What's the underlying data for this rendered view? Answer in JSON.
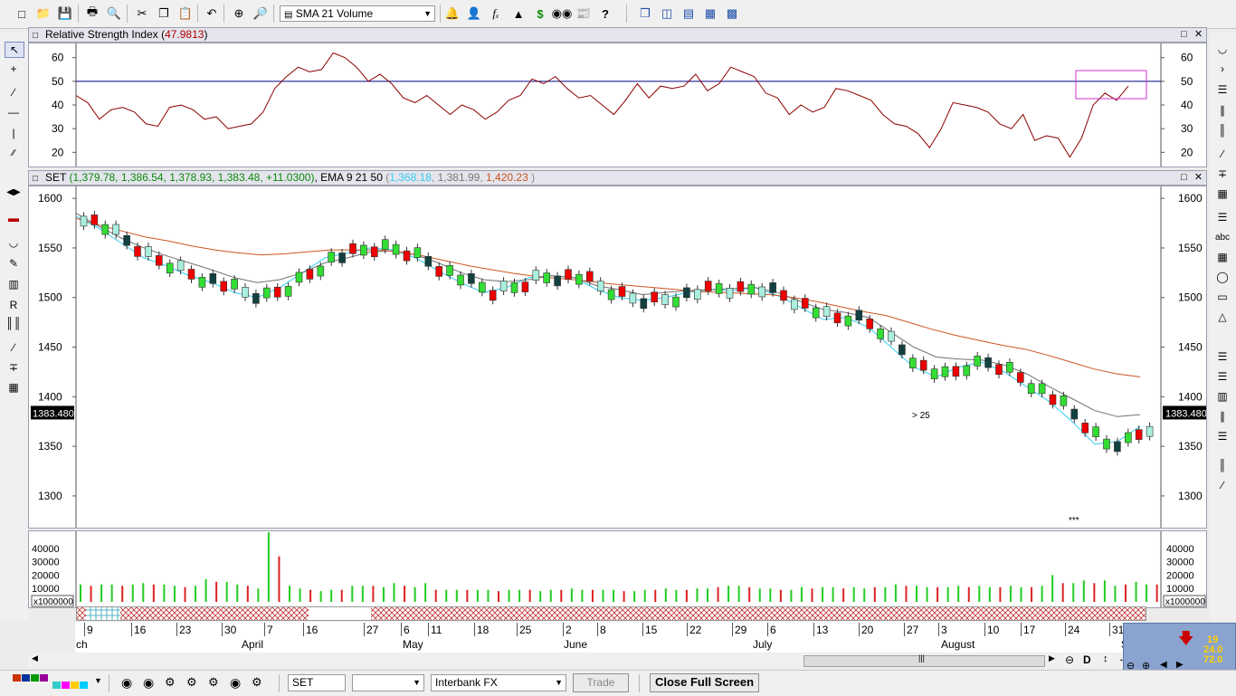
{
  "toolbar": {
    "indicator_combo": "SMA 21 Volume",
    "icons": [
      "new-file-icon",
      "open-folder-icon",
      "save-icon",
      "print-icon",
      "print-preview-icon",
      "cut-icon",
      "copy-icon",
      "paste-icon",
      "undo-icon",
      "crosshair-icon",
      "zoom-icon",
      "bell-icon",
      "person-icon",
      "function-icon",
      "tree-icon",
      "dollar-icon",
      "binoculars-icon",
      "news-icon",
      "help-icon",
      "window-cascade-icon",
      "tile-vertical-icon",
      "tile-horizontal-icon",
      "grid-icon",
      "snapshot-icon"
    ]
  },
  "rsi_panel": {
    "title_prefix": "Relative Strength Index (",
    "title_value": "47.9813",
    "title_suffix": ")",
    "ticks": [
      "60",
      "50",
      "40",
      "30",
      "20"
    ],
    "right_ticks": [
      "60",
      "50",
      "40",
      "30",
      "20"
    ]
  },
  "price_panel": {
    "symbol": "SET",
    "ohlc": "1,379.78, 1,386.54, 1,378.93, 1,383.48, +11.0300",
    "ema_label": "EMA 9 21 50",
    "ema9": "1,368.18",
    "ema21": "1,381.99",
    "ema50": "1,420.23",
    "ticks": [
      "1600",
      "1550",
      "1500",
      "1450",
      "1400",
      "1350",
      "1300"
    ],
    "last_price": "1383.480",
    "annotations": {
      "gt25": "> 25",
      "stars": "***"
    },
    "colors": {
      "ema9": "#33ccee",
      "ema21": "#707070",
      "ema50": "#cc5522",
      "up": "#33dd33",
      "down": "#ee0000",
      "hollow": "#aaeedd"
    }
  },
  "volume_panel": {
    "ticks": [
      "40000",
      "30000",
      "20000",
      "10000"
    ],
    "multiplier": "x1000000"
  },
  "time_axis": {
    "days": [
      "9",
      "16",
      "23",
      "30",
      "7",
      "16",
      "27",
      "6",
      "11",
      "18",
      "25",
      "2",
      "8",
      "15",
      "22",
      "29",
      "6",
      "13",
      "20",
      "27",
      "3",
      "10",
      "17",
      "24",
      "31"
    ],
    "months": [
      "ch",
      "April",
      "May",
      "June",
      "July",
      "August",
      "Septem"
    ]
  },
  "minipanel": {
    "l1": "19",
    "l2": "24.0",
    "l3": "72.0"
  },
  "scrollbar": {
    "d_label": "D"
  },
  "bottom": {
    "symbol_input": "SET",
    "provider_combo": "Interbank FX",
    "trade_button": "Trade",
    "close_button": "Close Full Screen",
    "colors": [
      "#cc3300",
      "#003399",
      "#009900",
      "#990099",
      "#33cccc",
      "#ff00ff",
      "#ffcc00",
      "#00ccff"
    ]
  },
  "chart_data": [
    {
      "type": "line",
      "title": "Relative Strength Index (47.9813)",
      "ylim": [
        14,
        66
      ],
      "reference_line": 50,
      "series": [
        {
          "name": "Relative Strength Index",
          "values": [
            44,
            41,
            34,
            38,
            39,
            37,
            32,
            31,
            39,
            40,
            38,
            34,
            35,
            30,
            31,
            32,
            37,
            47,
            52,
            56,
            54,
            55,
            62,
            60,
            56,
            50,
            53,
            49,
            43,
            41,
            44,
            40,
            36,
            40,
            38,
            34,
            37,
            42,
            44,
            51,
            49,
            52,
            47,
            43,
            44,
            40,
            36,
            42,
            49,
            43,
            48,
            47,
            48,
            53,
            46,
            49,
            56,
            54,
            52,
            45,
            43,
            36,
            40,
            37,
            39,
            47,
            46,
            44,
            42,
            36,
            32,
            31,
            28,
            22,
            30,
            41,
            40,
            39,
            37,
            32,
            30,
            36,
            25,
            27,
            26,
            18,
            26,
            40,
            45,
            42,
            48
          ]
        }
      ]
    },
    {
      "type": "line",
      "title": "SET (1,379.78, 1,386.54, 1,378.93, 1,383.48, +11.0300), EMA 9 21 50",
      "ylim": [
        1268,
        1612
      ],
      "series": [
        {
          "name": "EMA 9",
          "values": [
            1582,
            1570,
            1555,
            1540,
            1532,
            1522,
            1515,
            1505,
            1500,
            1510,
            1525,
            1540,
            1545,
            1550,
            1548,
            1540,
            1527,
            1515,
            1505,
            1510,
            1520,
            1522,
            1520,
            1508,
            1500,
            1497,
            1500,
            1505,
            1508,
            1507,
            1510,
            1502,
            1490,
            1478,
            1480,
            1470,
            1450,
            1430,
            1420,
            1430,
            1435,
            1425,
            1410,
            1395,
            1375,
            1352,
            1355,
            1370
          ]
        },
        {
          "name": "EMA 21",
          "values": [
            1585,
            1572,
            1560,
            1550,
            1542,
            1535,
            1528,
            1520,
            1515,
            1518,
            1525,
            1535,
            1540,
            1546,
            1547,
            1543,
            1535,
            1525,
            1518,
            1516,
            1518,
            1522,
            1520,
            1512,
            1508,
            1503,
            1505,
            1507,
            1508,
            1509,
            1510,
            1505,
            1496,
            1488,
            1485,
            1480,
            1465,
            1450,
            1440,
            1438,
            1437,
            1432,
            1423,
            1410,
            1398,
            1386,
            1380,
            1382
          ]
        },
        {
          "name": "EMA 50",
          "values": [
            1580,
            1573,
            1567,
            1561,
            1557,
            1552,
            1548,
            1545,
            1543,
            1544,
            1546,
            1548,
            1548,
            1548,
            1546,
            1542,
            1537,
            1532,
            1528,
            1524,
            1521,
            1519,
            1517,
            1514,
            1512,
            1510,
            1508,
            1506,
            1505,
            1504,
            1503,
            1500,
            1496,
            1491,
            1486,
            1482,
            1475,
            1468,
            1462,
            1457,
            1452,
            1448,
            1442,
            1435,
            1428,
            1423,
            1420
          ]
        }
      ]
    },
    {
      "type": "bar",
      "title": "Volume",
      "ylim": [
        0,
        50000
      ],
      "values": [
        13000,
        12000,
        13000,
        13000,
        12000,
        13000,
        14000,
        13000,
        13000,
        12000,
        11000,
        12000,
        17000,
        15000,
        15000,
        13000,
        12000,
        10000,
        52000,
        34000,
        12000,
        10000,
        9000,
        8000,
        9000,
        9000,
        12000,
        12000,
        12000,
        11000,
        14000,
        12000,
        11000,
        14000,
        9000,
        9000,
        9000,
        9000,
        9000,
        9000,
        8000,
        9000,
        9000,
        9000,
        8000,
        9000,
        9000,
        10000,
        9000,
        9000,
        9000,
        9000,
        8000,
        8000,
        9000,
        9000,
        10000,
        9000,
        9000,
        10000,
        10000,
        11000,
        12000,
        12000,
        11000,
        10000,
        10000,
        9000,
        9000,
        11000,
        10000,
        11000,
        11000,
        10000,
        11000,
        10000,
        11000,
        11000,
        13000,
        12000,
        12000,
        11000,
        11000,
        11000,
        12000,
        11000,
        12000,
        11000,
        11000,
        12000,
        11000,
        11000,
        12000,
        20000,
        14000,
        14000,
        16000,
        14000,
        16000,
        12000,
        13000,
        15000,
        13000,
        13000
      ]
    }
  ]
}
